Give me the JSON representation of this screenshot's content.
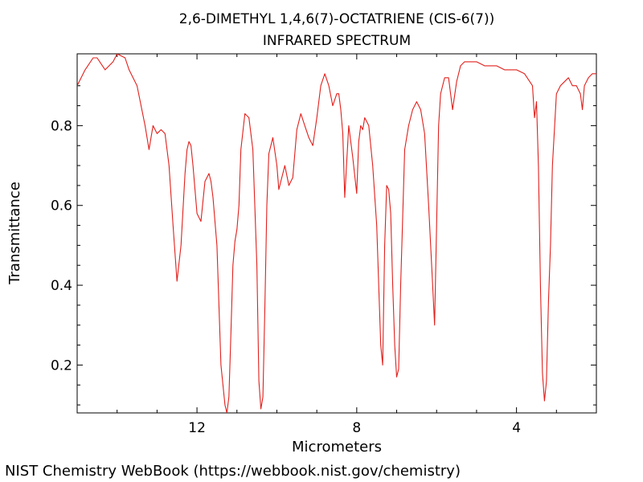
{
  "chart_data": {
    "type": "line",
    "title": "2,6-DIMETHYL 1,4,6(7)-OCTATRIENE (CIS-6(7))",
    "subtitle": "INFRARED SPECTRUM",
    "xlabel": "Micrometers",
    "ylabel": "Transmittance",
    "xlim": [
      15.0,
      2.0
    ],
    "ylim": [
      0.08,
      0.98
    ],
    "x_reversed": true,
    "x_ticks": [
      12,
      8,
      4
    ],
    "x_tick_labels": [
      "12",
      "8",
      "4"
    ],
    "y_ticks": [
      0.2,
      0.4,
      0.6,
      0.8
    ],
    "y_tick_labels": [
      "0.2",
      "0.4",
      "0.6",
      "0.8"
    ],
    "grid": false,
    "line_color": "#e0201c",
    "series": [
      {
        "x": [
          15.0,
          14.8,
          14.6,
          14.5,
          14.3,
          14.1,
          14.0,
          13.8,
          13.7,
          13.5,
          13.3,
          13.2,
          13.1,
          13.0,
          12.9,
          12.8,
          12.75,
          12.7,
          12.6,
          12.5,
          12.4,
          12.3,
          12.25,
          12.2,
          12.15,
          12.1,
          12.05,
          12.0,
          11.9,
          11.8,
          11.7,
          11.65,
          11.6,
          11.5,
          11.45,
          11.4,
          11.3,
          11.25,
          11.2,
          11.15,
          11.1,
          11.05,
          11.0,
          10.95,
          10.9,
          10.8,
          10.7,
          10.6,
          10.5,
          10.45,
          10.4,
          10.35,
          10.3,
          10.25,
          10.2,
          10.1,
          10.0,
          9.95,
          9.9,
          9.8,
          9.7,
          9.6,
          9.5,
          9.4,
          9.3,
          9.2,
          9.1,
          9.0,
          8.9,
          8.8,
          8.7,
          8.6,
          8.5,
          8.45,
          8.4,
          8.35,
          8.3,
          8.2,
          8.1,
          8.0,
          7.95,
          7.9,
          7.85,
          7.8,
          7.7,
          7.6,
          7.5,
          7.4,
          7.35,
          7.3,
          7.25,
          7.2,
          7.15,
          7.1,
          7.05,
          7.0,
          6.95,
          6.9,
          6.8,
          6.7,
          6.6,
          6.5,
          6.4,
          6.3,
          6.2,
          6.1,
          6.05,
          6.0,
          5.95,
          5.9,
          5.8,
          5.7,
          5.6,
          5.5,
          5.4,
          5.3,
          5.0,
          4.8,
          4.5,
          4.3,
          4.0,
          3.8,
          3.6,
          3.55,
          3.5,
          3.45,
          3.4,
          3.35,
          3.3,
          3.25,
          3.2,
          3.15,
          3.1,
          3.0,
          2.9,
          2.8,
          2.7,
          2.6,
          2.5,
          2.4,
          2.35,
          2.3,
          2.2,
          2.1,
          2.0
        ],
        "y": [
          0.9,
          0.94,
          0.97,
          0.97,
          0.94,
          0.96,
          0.98,
          0.97,
          0.94,
          0.9,
          0.8,
          0.74,
          0.8,
          0.78,
          0.79,
          0.78,
          0.74,
          0.7,
          0.55,
          0.41,
          0.5,
          0.68,
          0.74,
          0.76,
          0.75,
          0.7,
          0.64,
          0.58,
          0.56,
          0.66,
          0.68,
          0.66,
          0.62,
          0.5,
          0.35,
          0.2,
          0.1,
          0.08,
          0.12,
          0.28,
          0.45,
          0.51,
          0.54,
          0.6,
          0.74,
          0.83,
          0.82,
          0.74,
          0.45,
          0.16,
          0.09,
          0.12,
          0.35,
          0.6,
          0.73,
          0.77,
          0.7,
          0.64,
          0.66,
          0.7,
          0.65,
          0.67,
          0.79,
          0.83,
          0.8,
          0.77,
          0.75,
          0.82,
          0.9,
          0.93,
          0.9,
          0.85,
          0.88,
          0.88,
          0.84,
          0.78,
          0.62,
          0.8,
          0.72,
          0.63,
          0.76,
          0.8,
          0.79,
          0.82,
          0.8,
          0.7,
          0.55,
          0.25,
          0.2,
          0.5,
          0.65,
          0.64,
          0.58,
          0.4,
          0.25,
          0.17,
          0.19,
          0.4,
          0.74,
          0.8,
          0.84,
          0.86,
          0.84,
          0.78,
          0.6,
          0.4,
          0.3,
          0.55,
          0.8,
          0.88,
          0.92,
          0.92,
          0.84,
          0.91,
          0.95,
          0.96,
          0.96,
          0.95,
          0.95,
          0.94,
          0.94,
          0.93,
          0.9,
          0.82,
          0.86,
          0.7,
          0.4,
          0.18,
          0.11,
          0.16,
          0.36,
          0.5,
          0.7,
          0.88,
          0.9,
          0.91,
          0.92,
          0.9,
          0.9,
          0.88,
          0.84,
          0.9,
          0.92,
          0.93,
          0.93
        ]
      }
    ]
  },
  "footer": {
    "credit": "NIST Chemistry WebBook (https://webbook.nist.gov/chemistry)"
  }
}
